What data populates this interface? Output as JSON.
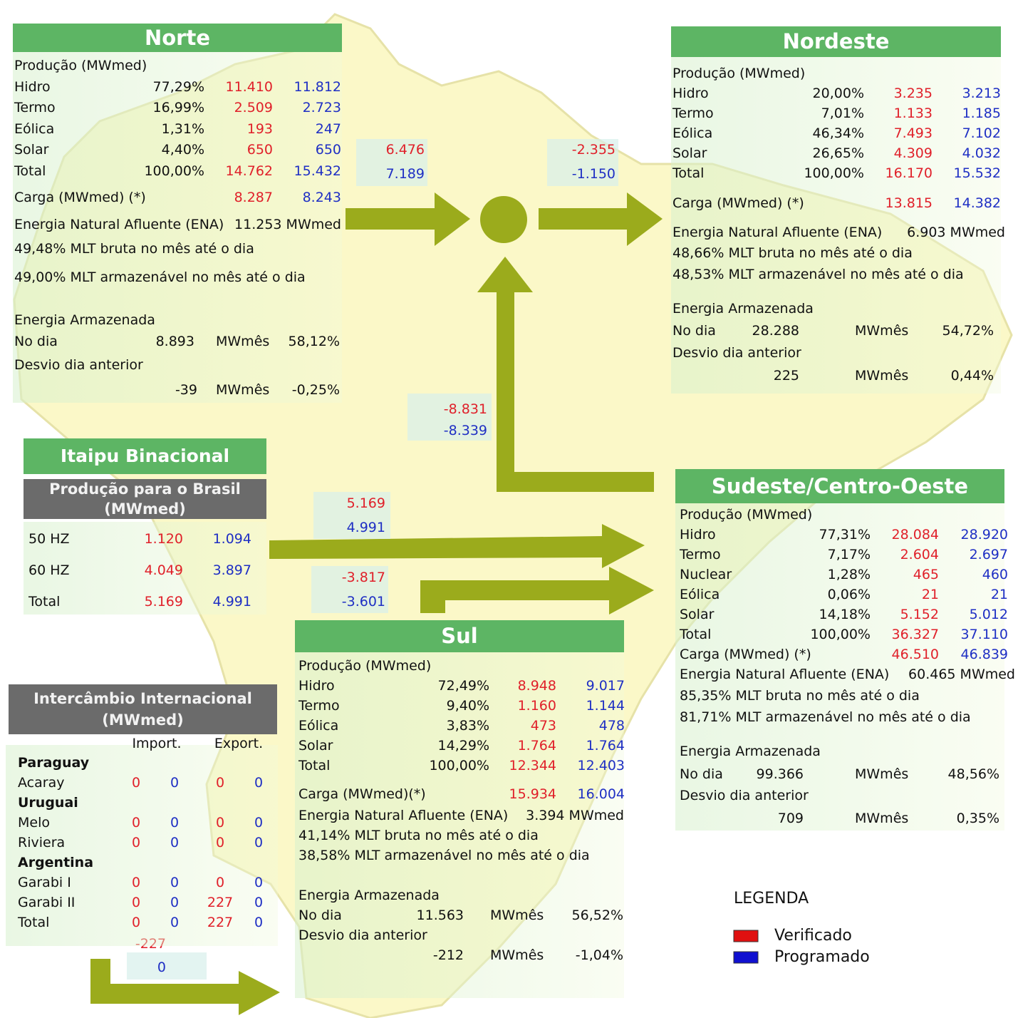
{
  "regions": [
    {
      "title": "Norte",
      "production_label": "Produção (MWmed)",
      "rows": [
        [
          "Hidro",
          "77,29%",
          "11.410",
          "11.812"
        ],
        [
          "Termo",
          "16,99%",
          "2.509",
          "2.723"
        ],
        [
          "Eólica",
          "1,31%",
          "193",
          "247"
        ],
        [
          "Solar",
          "4,40%",
          "650",
          "650"
        ],
        [
          "Total",
          "100,00%",
          "14.762",
          "15.432"
        ]
      ],
      "carga": [
        "Carga (MWmed) (*)",
        "8.287",
        "8.243"
      ],
      "ena": [
        "Energia Natural Afluente (ENA)",
        "11.253 MWmed"
      ],
      "mlt_bruta": "49,48% MLT bruta no mês até o dia",
      "mlt_armazenavel": "49,00% MLT armazenável no mês até o dia",
      "stored": {
        "title": "Energia Armazenada",
        "day": [
          "No dia",
          "8.893",
          "MWmês",
          "58,12%"
        ],
        "deviation_label": "Desvio dia anterior",
        "deviation": [
          "-39",
          "MWmês",
          "-0,25%"
        ]
      }
    },
    {
      "title": "Nordeste",
      "production_label": "Produção (MWmed)",
      "rows": [
        [
          "Hidro",
          "20,00%",
          "3.235",
          "3.213"
        ],
        [
          "Termo",
          "7,01%",
          "1.133",
          "1.185"
        ],
        [
          "Eólica",
          "46,34%",
          "7.493",
          "7.102"
        ],
        [
          "Solar",
          "26,65%",
          "4.309",
          "4.032"
        ],
        [
          "Total",
          "100,00%",
          "16.170",
          "15.532"
        ]
      ],
      "carga": [
        "Carga (MWmed) (*)",
        "13.815",
        "14.382"
      ],
      "ena": [
        "Energia Natural Afluente (ENA)",
        "6.903 MWmed"
      ],
      "mlt_bruta": "48,66% MLT bruta no mês até o dia",
      "mlt_armazenavel": "48,53% MLT armazenável no mês até o dia",
      "stored": {
        "title": "Energia Armazenada",
        "day": [
          "No dia",
          "28.288",
          "MWmês",
          "54,72%"
        ],
        "deviation_label": "Desvio dia anterior",
        "deviation": [
          "225",
          "MWmês",
          "0,44%"
        ]
      }
    },
    {
      "title": "Sudeste/Centro-Oeste",
      "production_label": "Produção (MWmed)",
      "rows": [
        [
          "Hidro",
          "77,31%",
          "28.084",
          "28.920"
        ],
        [
          "Termo",
          "7,17%",
          "2.604",
          "2.697"
        ],
        [
          "Nuclear",
          "1,28%",
          "465",
          "460"
        ],
        [
          "Eólica",
          "0,06%",
          "21",
          "21"
        ],
        [
          "Solar",
          "14,18%",
          "5.152",
          "5.012"
        ],
        [
          "Total",
          "100,00%",
          "36.327",
          "37.110"
        ]
      ],
      "carga": [
        "Carga (MWmed) (*)",
        "46.510",
        "46.839"
      ],
      "ena": [
        "Energia Natural Afluente (ENA)",
        "60.465 MWmed"
      ],
      "mlt_bruta": "85,35% MLT bruta no mês até o dia",
      "mlt_armazenavel": "81,71% MLT armazenável no mês até o dia",
      "stored": {
        "title": "Energia Armazenada",
        "day": [
          "No dia",
          "99.366",
          "MWmês",
          "48,56%"
        ],
        "deviation_label": "Desvio dia anterior",
        "deviation": [
          "709",
          "MWmês",
          "0,35%"
        ]
      }
    },
    {
      "title": "Sul",
      "production_label": "Produção (MWmed)",
      "rows": [
        [
          "Hidro",
          "72,49%",
          "8.948",
          "9.017"
        ],
        [
          "Termo",
          "9,40%",
          "1.160",
          "1.144"
        ],
        [
          "Eólica",
          "3,83%",
          "473",
          "478"
        ],
        [
          "Solar",
          "14,29%",
          "1.764",
          "1.764"
        ],
        [
          "Total",
          "100,00%",
          "12.344",
          "12.403"
        ]
      ],
      "carga": [
        "Carga (MWmed)(*)",
        "15.934",
        "16.004"
      ],
      "ena": [
        "Energia Natural Afluente (ENA)",
        "3.394 MWmed"
      ],
      "mlt_bruta": "41,14% MLT bruta no mês até o dia",
      "mlt_armazenavel": "38,58% MLT armazenável no mês até o dia",
      "stored": {
        "title": "Energia Armazenada",
        "day": [
          "No dia",
          "11.563",
          "MWmês",
          "56,52%"
        ],
        "deviation_label": "Desvio dia anterior",
        "deviation": [
          "-212",
          "MWmês",
          "-1,04%"
        ]
      }
    }
  ],
  "exchanges": [
    [
      "6.476",
      "7.189"
    ],
    [
      "-2.355",
      "-1.150"
    ],
    [
      "-8.831",
      "-8.339"
    ],
    [
      "5.169",
      "4.991"
    ],
    [
      "-3.817",
      "-3.601"
    ],
    [
      "-227",
      "0"
    ]
  ],
  "itaipu": {
    "title": "Itaipu Binacional",
    "subtitle": [
      "Produção para o Brasil",
      "(MWmed)"
    ],
    "rows": [
      [
        "50 HZ",
        "1.120",
        "1.094"
      ],
      [
        "60 HZ",
        "4.049",
        "3.897"
      ],
      [
        "Total",
        "5.169",
        "4.991"
      ]
    ]
  },
  "international": {
    "title": [
      "Intercâmbio Internacional",
      "(MWmed)"
    ],
    "headers": [
      "Import.",
      "Export."
    ],
    "groups": [
      {
        "name": "Paraguay",
        "rows": [
          [
            "Acaray",
            "0",
            "0",
            "0",
            "0"
          ]
        ]
      },
      {
        "name": "Uruguai",
        "rows": [
          [
            "Melo",
            "0",
            "0",
            "0",
            "0"
          ],
          [
            "Riviera",
            "0",
            "0",
            "0",
            "0"
          ]
        ]
      },
      {
        "name": "Argentina",
        "rows": [
          [
            "Garabi I",
            "0",
            "0",
            "0",
            "0"
          ],
          [
            "Garabi II",
            "0",
            "0",
            "227",
            "0"
          ],
          [
            "Total",
            "0",
            "0",
            "227",
            "0"
          ]
        ]
      }
    ]
  },
  "legend": {
    "title": "LEGENDA",
    "verified": "Verificado",
    "scheduled": "Programado"
  }
}
